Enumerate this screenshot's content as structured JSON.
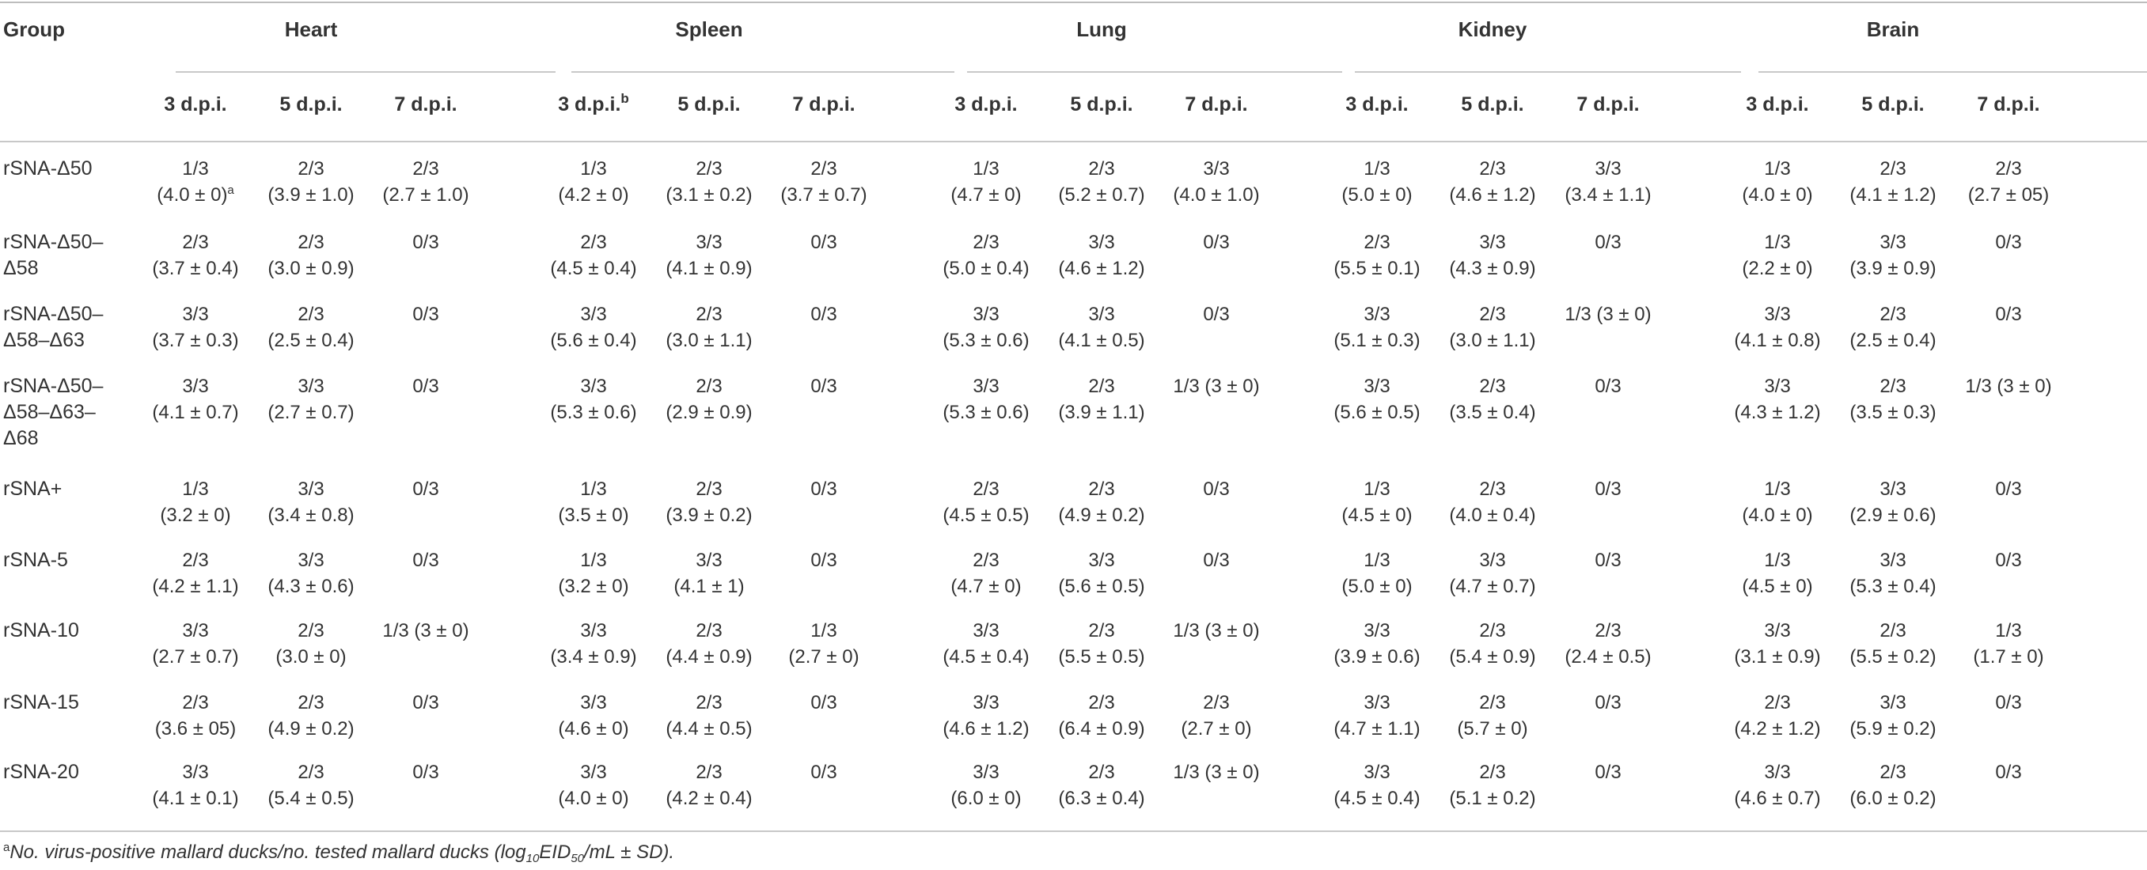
{
  "table": {
    "group_header": "Group",
    "organs": [
      "Heart",
      "Spleen",
      "Lung",
      "Kidney",
      "Brain"
    ],
    "dpi_labels": [
      "3 d.p.i.",
      "5 d.p.i.",
      "7 d.p.i."
    ],
    "dpi_superscript_spleen_3": "b",
    "rows": [
      {
        "label": [
          "rSNA-Δ50"
        ],
        "cells": [
          [
            "1/3",
            "(4.0 ± 0)",
            "a"
          ],
          [
            "2/3",
            "(3.9 ± 1.0)"
          ],
          [
            "2/3",
            "(2.7 ± 1.0)"
          ],
          [
            "1/3",
            "(4.2 ± 0)"
          ],
          [
            "2/3",
            "(3.1 ± 0.2)"
          ],
          [
            "2/3",
            "(3.7 ± 0.7)"
          ],
          [
            "1/3",
            "(4.7 ± 0)"
          ],
          [
            "2/3",
            "(5.2 ± 0.7)"
          ],
          [
            "3/3",
            "(4.0 ± 1.0)"
          ],
          [
            "1/3",
            "(5.0 ± 0)"
          ],
          [
            "2/3",
            "(4.6 ± 1.2)"
          ],
          [
            "3/3",
            "(3.4 ± 1.1)"
          ],
          [
            "1/3",
            "(4.0 ± 0)"
          ],
          [
            "2/3",
            "(4.1 ± 1.2)"
          ],
          [
            "2/3",
            "(2.7 ± 05)"
          ]
        ]
      },
      {
        "label": [
          "rSNA-Δ50–",
          "Δ58"
        ],
        "cells": [
          [
            "2/3",
            "(3.7 ± 0.4)"
          ],
          [
            "2/3",
            "(3.0 ± 0.9)"
          ],
          [
            "0/3"
          ],
          [
            "2/3",
            "(4.5 ± 0.4)"
          ],
          [
            "3/3",
            "(4.1 ± 0.9)"
          ],
          [
            "0/3"
          ],
          [
            "2/3",
            "(5.0 ± 0.4)"
          ],
          [
            "3/3",
            "(4.6 ± 1.2)"
          ],
          [
            "0/3"
          ],
          [
            "2/3",
            "(5.5 ± 0.1)"
          ],
          [
            "3/3",
            "(4.3 ± 0.9)"
          ],
          [
            "0/3"
          ],
          [
            "1/3",
            "(2.2 ± 0)"
          ],
          [
            "3/3",
            "(3.9 ± 0.9)"
          ],
          [
            "0/3"
          ]
        ]
      },
      {
        "label": [
          "rSNA-Δ50–",
          "Δ58–Δ63"
        ],
        "cells": [
          [
            "3/3",
            "(3.7 ± 0.3)"
          ],
          [
            "2/3",
            "(2.5 ± 0.4)"
          ],
          [
            "0/3"
          ],
          [
            "3/3",
            "(5.6 ± 0.4)"
          ],
          [
            "2/3",
            "(3.0 ± 1.1)"
          ],
          [
            "0/3"
          ],
          [
            "3/3",
            "(5.3 ± 0.6)"
          ],
          [
            "3/3",
            "(4.1 ± 0.5)"
          ],
          [
            "0/3"
          ],
          [
            "3/3",
            "(5.1 ± 0.3)"
          ],
          [
            "2/3",
            "(3.0 ± 1.1)"
          ],
          [
            "1/3 (3 ± 0)"
          ],
          [
            "3/3",
            "(4.1 ± 0.8)"
          ],
          [
            "2/3",
            "(2.5 ± 0.4)"
          ],
          [
            "0/3"
          ]
        ]
      },
      {
        "label": [
          "rSNA-Δ50–",
          "Δ58–Δ63–",
          "Δ68"
        ],
        "cells": [
          [
            "3/3",
            "(4.1 ± 0.7)"
          ],
          [
            "3/3",
            "(2.7 ± 0.7)"
          ],
          [
            "0/3"
          ],
          [
            "3/3",
            "(5.3 ± 0.6)"
          ],
          [
            "2/3",
            "(2.9 ± 0.9)"
          ],
          [
            "0/3"
          ],
          [
            "3/3",
            "(5.3 ± 0.6)"
          ],
          [
            "2/3",
            "(3.9 ± 1.1)"
          ],
          [
            "1/3 (3 ± 0)"
          ],
          [
            "3/3",
            "(5.6 ± 0.5)"
          ],
          [
            "2/3",
            "(3.5 ± 0.4)"
          ],
          [
            "0/3"
          ],
          [
            "3/3",
            "(4.3 ± 1.2)"
          ],
          [
            "2/3",
            "(3.5 ± 0.3)"
          ],
          [
            "1/3 (3 ± 0)"
          ]
        ]
      },
      {
        "label": [
          "rSNA+"
        ],
        "cells": [
          [
            "1/3",
            "(3.2 ± 0)"
          ],
          [
            "3/3",
            "(3.4 ± 0.8)"
          ],
          [
            "0/3"
          ],
          [
            "1/3",
            "(3.5 ± 0)"
          ],
          [
            "2/3",
            "(3.9 ± 0.2)"
          ],
          [
            "0/3"
          ],
          [
            "2/3",
            "(4.5 ± 0.5)"
          ],
          [
            "2/3",
            "(4.9 ± 0.2)"
          ],
          [
            "0/3"
          ],
          [
            "1/3",
            "(4.5 ± 0)"
          ],
          [
            "2/3",
            "(4.0 ± 0.4)"
          ],
          [
            "0/3"
          ],
          [
            "1/3",
            "(4.0 ± 0)"
          ],
          [
            "3/3",
            "(2.9 ± 0.6)"
          ],
          [
            "0/3"
          ]
        ]
      },
      {
        "label": [
          "rSNA-5"
        ],
        "cells": [
          [
            "2/3",
            "(4.2 ± 1.1)"
          ],
          [
            "3/3",
            "(4.3 ± 0.6)"
          ],
          [
            "0/3"
          ],
          [
            "1/3",
            "(3.2 ± 0)"
          ],
          [
            "3/3",
            "(4.1 ± 1)"
          ],
          [
            "0/3"
          ],
          [
            "2/3",
            "(4.7 ± 0)"
          ],
          [
            "3/3",
            "(5.6 ± 0.5)"
          ],
          [
            "0/3"
          ],
          [
            "1/3",
            "(5.0 ± 0)"
          ],
          [
            "3/3",
            "(4.7 ± 0.7)"
          ],
          [
            "0/3"
          ],
          [
            "1/3",
            "(4.5 ± 0)"
          ],
          [
            "3/3",
            "(5.3 ± 0.4)"
          ],
          [
            "0/3"
          ]
        ]
      },
      {
        "label": [
          "rSNA-10"
        ],
        "cells": [
          [
            "3/3",
            "(2.7 ± 0.7)"
          ],
          [
            "2/3",
            "(3.0 ± 0)"
          ],
          [
            "1/3 (3 ± 0)"
          ],
          [
            "3/3",
            "(3.4 ± 0.9)"
          ],
          [
            "2/3",
            "(4.4 ± 0.9)"
          ],
          [
            "1/3",
            "(2.7 ± 0)"
          ],
          [
            "3/3",
            "(4.5 ± 0.4)"
          ],
          [
            "2/3",
            "(5.5 ± 0.5)"
          ],
          [
            "1/3 (3 ± 0)"
          ],
          [
            "3/3",
            "(3.9 ± 0.6)"
          ],
          [
            "2/3",
            "(5.4 ± 0.9)"
          ],
          [
            "2/3",
            "(2.4 ± 0.5)"
          ],
          [
            "3/3",
            "(3.1 ± 0.9)"
          ],
          [
            "2/3",
            "(5.5 ± 0.2)"
          ],
          [
            "1/3",
            "(1.7 ± 0)"
          ]
        ]
      },
      {
        "label": [
          "rSNA-15"
        ],
        "cells": [
          [
            "2/3",
            "(3.6 ± 05)"
          ],
          [
            "2/3",
            "(4.9 ± 0.2)"
          ],
          [
            "0/3"
          ],
          [
            "3/3",
            "(4.6 ± 0)"
          ],
          [
            "2/3",
            "(4.4 ± 0.5)"
          ],
          [
            "0/3"
          ],
          [
            "3/3",
            "(4.6 ± 1.2)"
          ],
          [
            "2/3",
            "(6.4 ± 0.9)"
          ],
          [
            "2/3",
            "(2.7 ± 0)"
          ],
          [
            "3/3",
            "(4.7 ± 1.1)"
          ],
          [
            "2/3",
            "(5.7 ± 0)"
          ],
          [
            "0/3"
          ],
          [
            "2/3",
            "(4.2 ± 1.2)"
          ],
          [
            "3/3",
            "(5.9 ± 0.2)"
          ],
          [
            "0/3"
          ]
        ]
      },
      {
        "label": [
          "rSNA-20"
        ],
        "cells": [
          [
            "3/3",
            "(4.1 ± 0.1)"
          ],
          [
            "2/3",
            "(5.4 ± 0.5)"
          ],
          [
            "0/3"
          ],
          [
            "3/3",
            "(4.0 ± 0)"
          ],
          [
            "2/3",
            "(4.2 ± 0.4)"
          ],
          [
            "0/3"
          ],
          [
            "3/3",
            "(6.0 ± 0)"
          ],
          [
            "2/3",
            "(6.3 ± 0.4)"
          ],
          [
            "1/3 (3 ± 0)"
          ],
          [
            "3/3",
            "(4.5 ± 0.4)"
          ],
          [
            "2/3",
            "(5.1 ± 0.2)"
          ],
          [
            "0/3"
          ],
          [
            "3/3",
            "(4.6 ± 0.7)"
          ],
          [
            "2/3",
            "(6.0 ± 0.2)"
          ],
          [
            "0/3"
          ]
        ]
      }
    ]
  },
  "footnote": {
    "mark": "a",
    "text_before": "No. virus-positive mallard ducks/no. tested mallard ducks (log",
    "sub": "10",
    "text_mid": "EID",
    "sub2": "50",
    "text_after": "/mL ± SD)."
  }
}
